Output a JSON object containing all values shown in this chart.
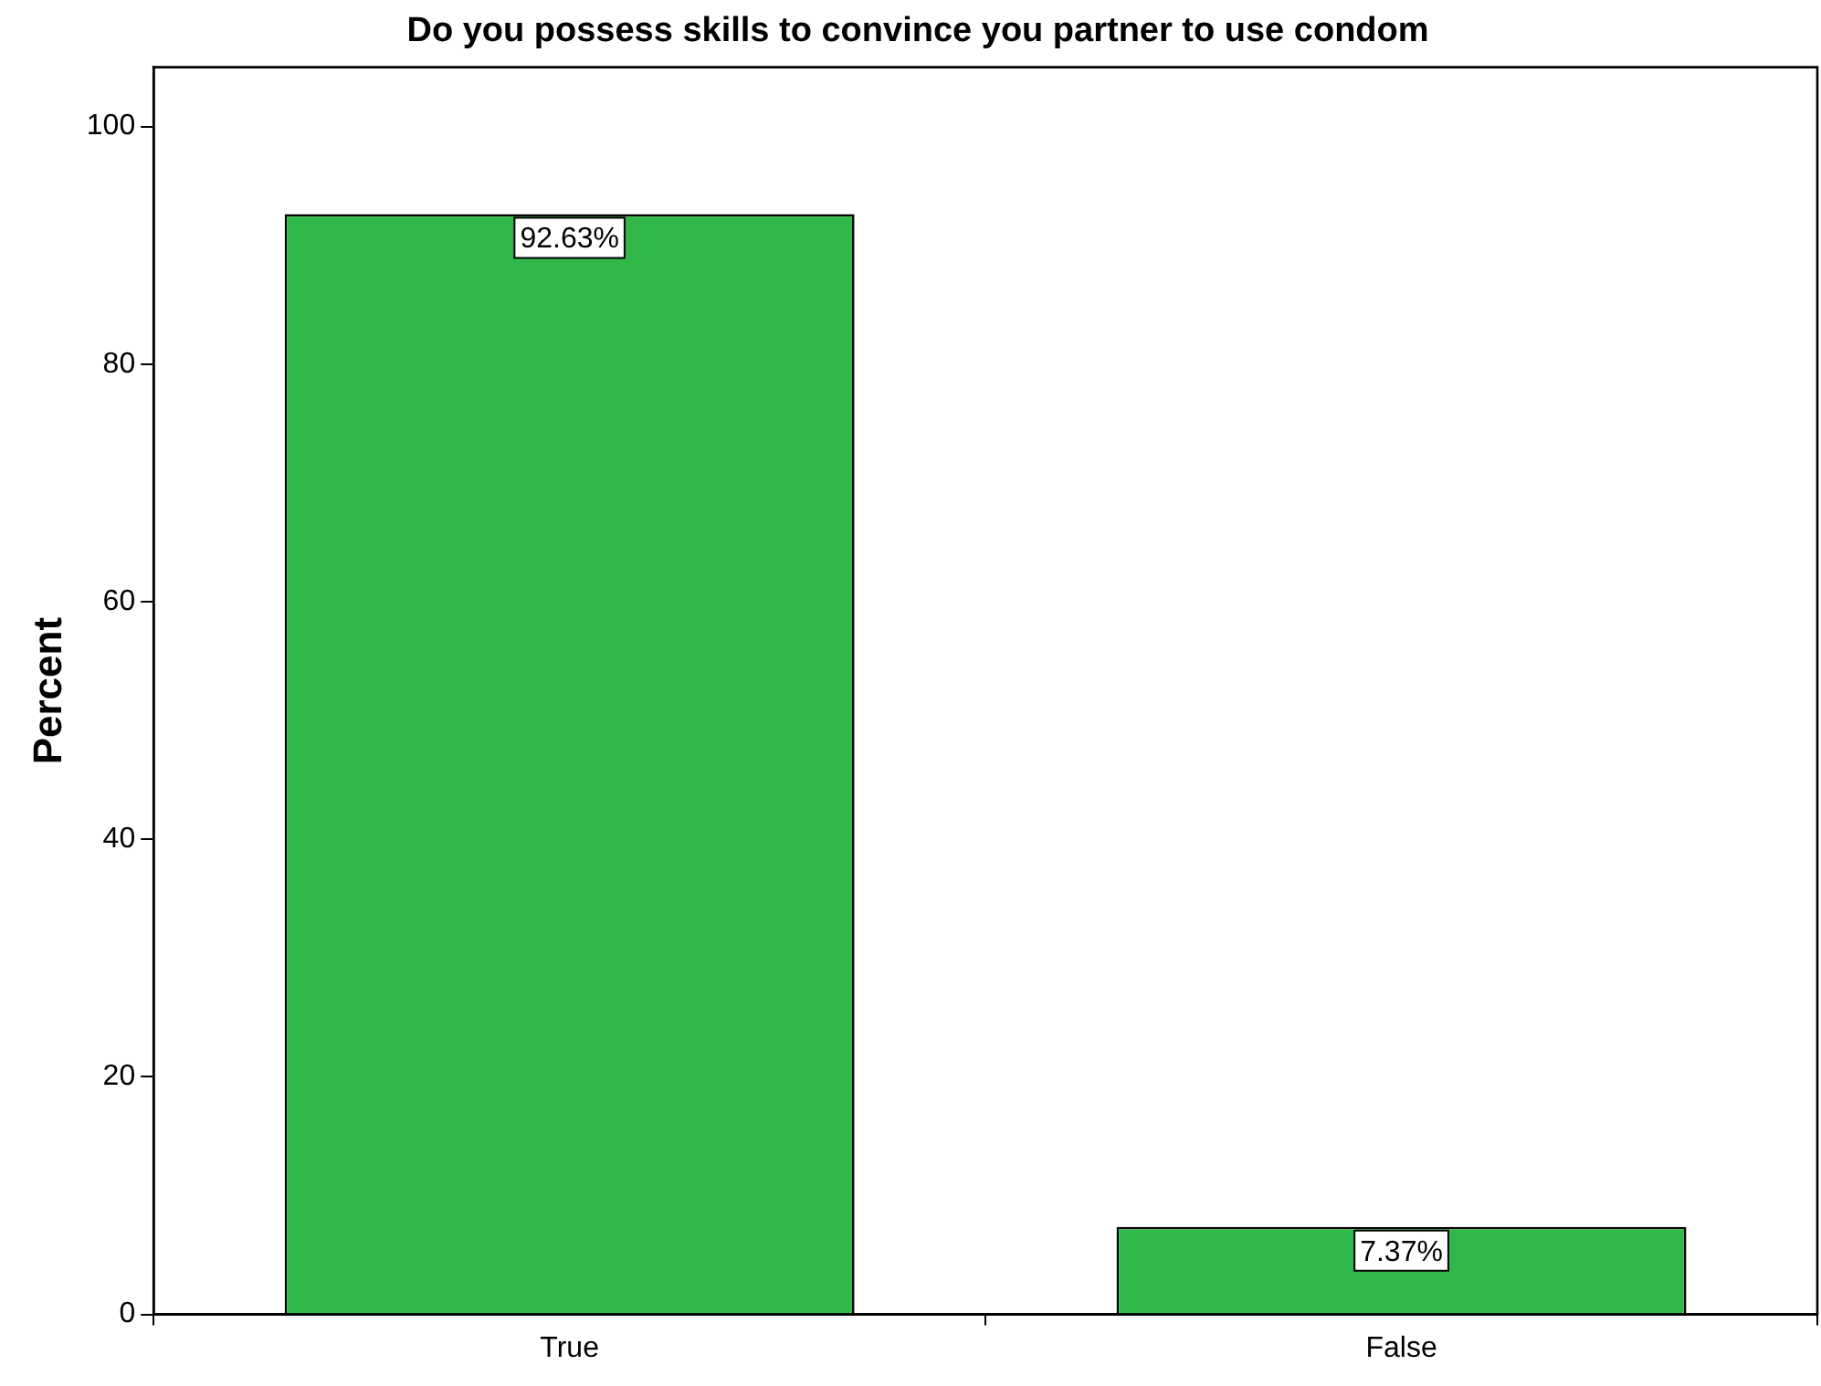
{
  "chart_data": {
    "type": "bar",
    "title": "Do you possess skills to convince you partner to use condom",
    "ylabel": "Percent",
    "categories": [
      "True",
      "False"
    ],
    "series": [
      {
        "color": "#31b84b",
        "values": [
          92.63,
          7.37
        ],
        "value_labels": [
          "92.63%",
          "7.37%"
        ]
      }
    ],
    "ylim": [
      0,
      105
    ],
    "yticks": [
      0,
      20,
      40,
      60,
      80,
      100
    ],
    "grid": false,
    "legend": false
  }
}
